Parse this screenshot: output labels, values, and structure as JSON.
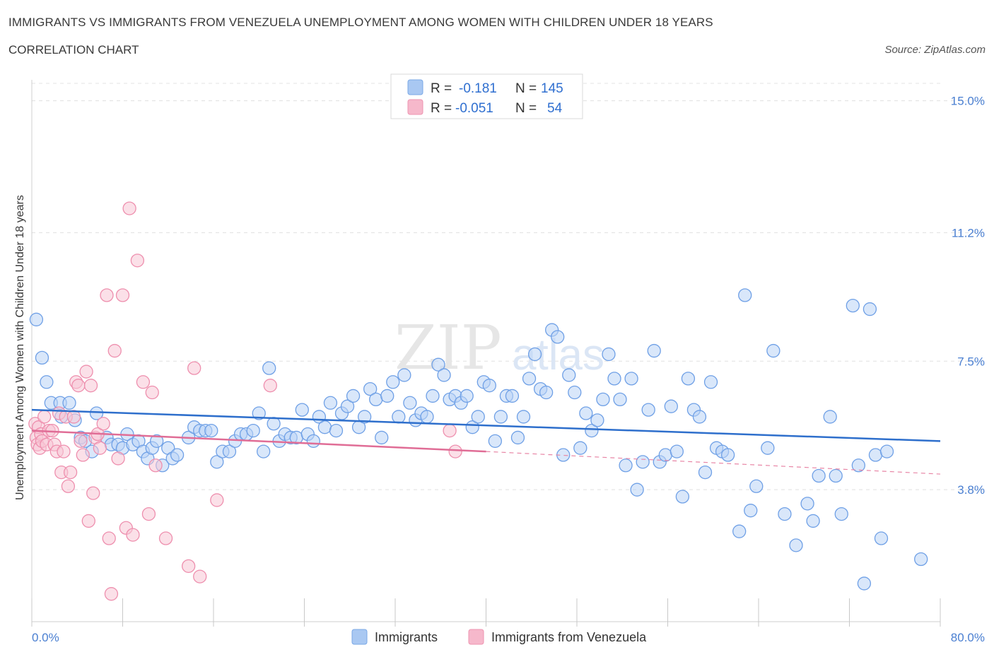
{
  "header": {
    "title": "IMMIGRANTS VS IMMIGRANTS FROM VENEZUELA UNEMPLOYMENT AMONG WOMEN WITH CHILDREN UNDER 18 YEARS",
    "subtitle": "CORRELATION CHART",
    "source": "Source: ZipAtlas.com"
  },
  "watermark": {
    "zip": "ZIP",
    "atlas": "atlas"
  },
  "legend_top": {
    "rows": [
      {
        "r_label": "R =",
        "r_value": "-0.181",
        "n_label": "N =",
        "n_value": "145",
        "color": "#a9c8f2"
      },
      {
        "r_label": "R =",
        "r_value": "-0.051",
        "n_label": "N =",
        "n_value": "54",
        "color": "#f6b8cb"
      }
    ]
  },
  "chart_data": {
    "type": "scatter",
    "title": "IMMIGRANTS VS IMMIGRANTS FROM VENEZUELA UNEMPLOYMENT AMONG WOMEN WITH CHILDREN UNDER 18 YEARS",
    "subtitle": "CORRELATION CHART",
    "xlabel": "",
    "ylabel": "Unemployment Among Women with Children Under 18 years",
    "xlim": [
      0,
      80
    ],
    "ylim": [
      0.0,
      15.5
    ],
    "x_tick_labels": [
      "0.0%",
      "80.0%"
    ],
    "y_ticks": [
      3.8,
      7.5,
      11.2,
      15.0
    ],
    "y_tick_labels": [
      "3.8%",
      "7.5%",
      "11.2%",
      "15.0%"
    ],
    "grid": true,
    "legend_position": "bottom",
    "series": [
      {
        "name": "Immigrants",
        "color": "#6fa0e6",
        "fill": "#b9d3f5",
        "r": -0.181,
        "n": 145,
        "trend": {
          "x": [
            0,
            80
          ],
          "y": [
            6.1,
            5.2
          ],
          "style": "solid"
        },
        "points": [
          [
            0.4,
            8.7
          ],
          [
            0.9,
            7.6
          ],
          [
            1.3,
            6.9
          ],
          [
            1.7,
            6.3
          ],
          [
            2.5,
            6.3
          ],
          [
            3.3,
            6.3
          ],
          [
            2.6,
            5.9
          ],
          [
            3.8,
            5.8
          ],
          [
            4.3,
            5.3
          ],
          [
            4.7,
            5.2
          ],
          [
            5.3,
            4.9
          ],
          [
            5.7,
            6.0
          ],
          [
            6.6,
            5.3
          ],
          [
            7.0,
            5.1
          ],
          [
            7.6,
            5.1
          ],
          [
            8.0,
            5.0
          ],
          [
            8.4,
            5.4
          ],
          [
            8.9,
            5.1
          ],
          [
            9.4,
            5.2
          ],
          [
            9.8,
            4.9
          ],
          [
            10.2,
            4.7
          ],
          [
            10.6,
            5.0
          ],
          [
            11.0,
            5.2
          ],
          [
            11.5,
            4.5
          ],
          [
            12.0,
            5.0
          ],
          [
            12.4,
            4.7
          ],
          [
            12.8,
            4.8
          ],
          [
            13.8,
            5.3
          ],
          [
            14.3,
            5.6
          ],
          [
            14.8,
            5.5
          ],
          [
            15.3,
            5.5
          ],
          [
            15.8,
            5.5
          ],
          [
            16.3,
            4.6
          ],
          [
            16.8,
            4.9
          ],
          [
            17.4,
            4.9
          ],
          [
            17.9,
            5.2
          ],
          [
            18.4,
            5.4
          ],
          [
            18.9,
            5.4
          ],
          [
            19.5,
            5.5
          ],
          [
            20.0,
            6.0
          ],
          [
            20.4,
            4.9
          ],
          [
            20.9,
            7.3
          ],
          [
            21.3,
            5.7
          ],
          [
            21.8,
            5.2
          ],
          [
            22.3,
            5.4
          ],
          [
            22.8,
            5.3
          ],
          [
            23.3,
            5.3
          ],
          [
            23.8,
            6.1
          ],
          [
            24.3,
            5.4
          ],
          [
            24.8,
            5.2
          ],
          [
            25.3,
            5.9
          ],
          [
            25.8,
            5.6
          ],
          [
            26.3,
            6.3
          ],
          [
            26.8,
            5.5
          ],
          [
            27.3,
            6.0
          ],
          [
            27.8,
            6.2
          ],
          [
            28.3,
            6.5
          ],
          [
            28.8,
            5.6
          ],
          [
            29.3,
            5.9
          ],
          [
            29.8,
            6.7
          ],
          [
            30.3,
            6.4
          ],
          [
            30.8,
            5.3
          ],
          [
            31.3,
            6.5
          ],
          [
            31.8,
            6.9
          ],
          [
            32.3,
            5.9
          ],
          [
            32.8,
            7.1
          ],
          [
            33.3,
            6.3
          ],
          [
            33.8,
            5.8
          ],
          [
            34.3,
            6.0
          ],
          [
            34.8,
            5.9
          ],
          [
            35.3,
            6.5
          ],
          [
            35.8,
            7.4
          ],
          [
            36.3,
            7.1
          ],
          [
            36.8,
            6.4
          ],
          [
            37.3,
            6.5
          ],
          [
            37.8,
            6.3
          ],
          [
            38.3,
            6.5
          ],
          [
            38.8,
            5.6
          ],
          [
            39.3,
            5.9
          ],
          [
            39.8,
            6.9
          ],
          [
            40.3,
            6.8
          ],
          [
            40.8,
            5.2
          ],
          [
            41.3,
            5.9
          ],
          [
            41.8,
            6.5
          ],
          [
            42.3,
            6.5
          ],
          [
            42.8,
            5.3
          ],
          [
            43.3,
            5.9
          ],
          [
            43.8,
            7.0
          ],
          [
            44.3,
            7.7
          ],
          [
            44.8,
            6.7
          ],
          [
            45.3,
            6.6
          ],
          [
            45.8,
            8.4
          ],
          [
            46.3,
            8.2
          ],
          [
            46.8,
            4.8
          ],
          [
            47.3,
            7.1
          ],
          [
            47.8,
            6.6
          ],
          [
            48.3,
            5.0
          ],
          [
            48.8,
            6.0
          ],
          [
            49.3,
            5.5
          ],
          [
            49.8,
            5.8
          ],
          [
            50.3,
            6.4
          ],
          [
            50.8,
            7.7
          ],
          [
            51.3,
            7.0
          ],
          [
            51.8,
            6.4
          ],
          [
            52.3,
            4.5
          ],
          [
            52.8,
            7.0
          ],
          [
            53.3,
            3.8
          ],
          [
            53.8,
            4.6
          ],
          [
            54.3,
            6.1
          ],
          [
            54.8,
            7.8
          ],
          [
            55.3,
            4.6
          ],
          [
            55.8,
            4.8
          ],
          [
            56.3,
            6.2
          ],
          [
            56.8,
            4.9
          ],
          [
            57.3,
            3.6
          ],
          [
            57.8,
            7.0
          ],
          [
            58.3,
            6.1
          ],
          [
            58.8,
            5.9
          ],
          [
            59.3,
            4.3
          ],
          [
            59.8,
            6.9
          ],
          [
            60.3,
            5.0
          ],
          [
            60.8,
            4.9
          ],
          [
            61.3,
            4.8
          ],
          [
            62.3,
            2.6
          ],
          [
            62.8,
            9.4
          ],
          [
            63.3,
            3.2
          ],
          [
            63.8,
            3.9
          ],
          [
            64.8,
            5.0
          ],
          [
            65.3,
            7.8
          ],
          [
            66.3,
            3.1
          ],
          [
            67.3,
            2.2
          ],
          [
            68.3,
            3.4
          ],
          [
            68.8,
            2.9
          ],
          [
            69.3,
            4.2
          ],
          [
            70.3,
            5.9
          ],
          [
            70.8,
            4.2
          ],
          [
            71.3,
            3.1
          ],
          [
            72.3,
            9.1
          ],
          [
            72.8,
            4.5
          ],
          [
            73.3,
            1.1
          ],
          [
            74.3,
            4.8
          ],
          [
            74.8,
            2.4
          ],
          [
            73.8,
            9.0
          ],
          [
            75.3,
            4.9
          ],
          [
            78.3,
            1.8
          ]
        ]
      },
      {
        "name": "Immigrants from Venezuela",
        "color": "#ee8fae",
        "fill": "#f8c6d6",
        "r": -0.051,
        "n": 54,
        "trend": {
          "x": [
            0,
            40
          ],
          "y": [
            5.5,
            4.9
          ],
          "style": "solid",
          "extend_to": [
            80,
            4.25
          ],
          "extend_style": "dashed"
        },
        "points": [
          [
            0.3,
            5.7
          ],
          [
            0.4,
            5.3
          ],
          [
            0.5,
            5.1
          ],
          [
            0.6,
            5.6
          ],
          [
            0.7,
            5.0
          ],
          [
            0.8,
            5.4
          ],
          [
            0.9,
            5.2
          ],
          [
            1.1,
            5.9
          ],
          [
            1.3,
            5.1
          ],
          [
            1.5,
            5.5
          ],
          [
            1.8,
            5.5
          ],
          [
            2.0,
            5.1
          ],
          [
            2.2,
            4.9
          ],
          [
            2.4,
            6.0
          ],
          [
            2.6,
            4.3
          ],
          [
            2.8,
            4.9
          ],
          [
            3.0,
            5.9
          ],
          [
            3.2,
            3.9
          ],
          [
            3.4,
            4.3
          ],
          [
            3.7,
            5.9
          ],
          [
            3.9,
            6.9
          ],
          [
            4.1,
            6.8
          ],
          [
            4.3,
            5.2
          ],
          [
            4.5,
            4.8
          ],
          [
            4.8,
            7.2
          ],
          [
            5.0,
            2.9
          ],
          [
            5.2,
            6.8
          ],
          [
            5.4,
            3.7
          ],
          [
            5.6,
            5.3
          ],
          [
            5.8,
            5.4
          ],
          [
            6.0,
            5.0
          ],
          [
            6.3,
            5.7
          ],
          [
            6.6,
            9.4
          ],
          [
            6.8,
            2.4
          ],
          [
            7.0,
            0.8
          ],
          [
            7.3,
            7.8
          ],
          [
            7.6,
            4.7
          ],
          [
            8.0,
            9.4
          ],
          [
            8.3,
            2.7
          ],
          [
            8.6,
            11.9
          ],
          [
            8.9,
            2.5
          ],
          [
            9.3,
            10.4
          ],
          [
            9.8,
            6.9
          ],
          [
            10.3,
            3.1
          ],
          [
            10.6,
            6.6
          ],
          [
            10.9,
            4.5
          ],
          [
            11.8,
            2.4
          ],
          [
            13.8,
            1.6
          ],
          [
            14.3,
            7.3
          ],
          [
            14.8,
            1.3
          ],
          [
            16.3,
            3.5
          ],
          [
            21.0,
            6.8
          ],
          [
            36.8,
            5.5
          ],
          [
            37.3,
            4.9
          ]
        ]
      }
    ]
  },
  "legend_bottom": {
    "items": [
      {
        "label": "Immigrants",
        "color": "#a9c8f2"
      },
      {
        "label": "Immigrants from Venezuela",
        "color": "#f6b8cb"
      }
    ]
  }
}
